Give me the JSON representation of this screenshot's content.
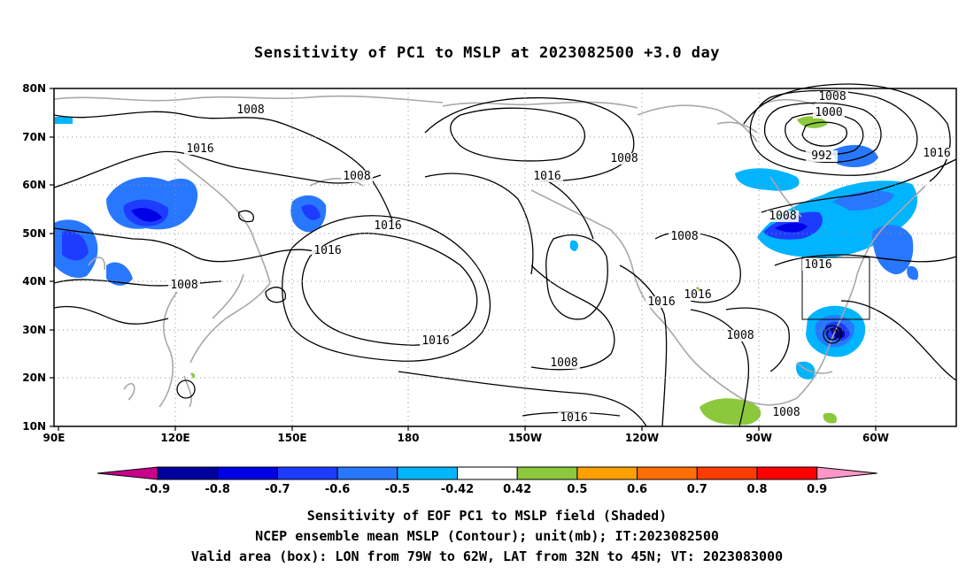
{
  "title": "Sensitivity of PC1 to MSLP at 2023082500 +3.0 day",
  "captions": {
    "line1": "Sensitivity of EOF PC1 to MSLP field (Shaded)",
    "line2": "NCEP ensemble mean MSLP (Contour); unit(mb); IT:2023082500",
    "line3": "Valid area (box): LON from 79W to 62W, LAT from 32N to 45N; VT: 2023083000"
  },
  "map": {
    "lon_labels": [
      "90E",
      "120E",
      "150E",
      "180",
      "150W",
      "120W",
      "90W",
      "60W"
    ],
    "lat_labels": [
      "80N",
      "70N",
      "60N",
      "50N",
      "40N",
      "30N",
      "20N",
      "10N"
    ],
    "valid_box": {
      "lon_min": -79,
      "lon_max": -62,
      "lat_min": 32,
      "lat_max": 45
    },
    "contour_labels": [
      "1008",
      "1016",
      "1008",
      "1016",
      "1008",
      "1016",
      "1008",
      "1016",
      "1008",
      "1016",
      "1016",
      "1016",
      "1008",
      "1016",
      "1008",
      "1016",
      "1008",
      "1016",
      "992",
      "1000",
      "1008",
      "1008"
    ]
  },
  "colorbar": {
    "labels": [
      "-0.9",
      "-0.8",
      "-0.7",
      "-0.6",
      "-0.5",
      "-0.42",
      "0.42",
      "0.5",
      "0.6",
      "0.7",
      "0.8",
      "0.9"
    ],
    "colors": [
      "#c8008c",
      "#0000a0",
      "#0000e6",
      "#1e3cff",
      "#2878ff",
      "#00b4ff",
      "#ffffff",
      "#8cc83c",
      "#ffa000",
      "#ff6e00",
      "#ff3c00",
      "#ff0000",
      "#ff96c8"
    ]
  }
}
